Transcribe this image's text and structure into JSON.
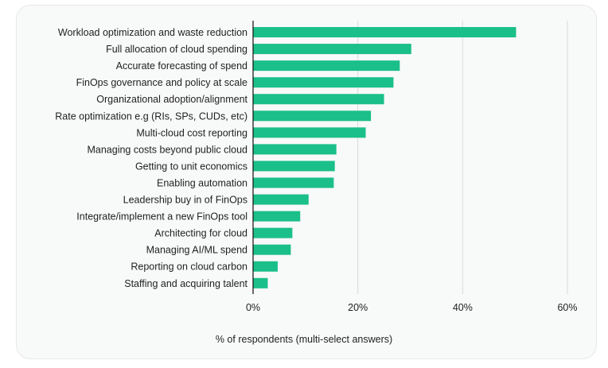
{
  "chart_data": {
    "type": "bar",
    "orientation": "horizontal",
    "categories": [
      "Workload optimization and waste reduction",
      "Full allocation of cloud spending",
      "Accurate forecasting of spend",
      "FinOps governance and policy at scale",
      "Organizational adoption/alignment",
      "Rate optimization e.g (RIs, SPs, CUDs, etc)",
      "Multi-cloud cost reporting",
      "Managing costs beyond public cloud",
      "Getting to unit economics",
      "Enabling automation",
      "Leadership buy in of FinOps",
      "Integrate/implement a new FinOps tool",
      "Architecting for cloud",
      "Managing AI/ML spend",
      "Reporting on cloud carbon",
      "Staffing and acquiring talent"
    ],
    "values": [
      50.2,
      30.2,
      28.0,
      26.8,
      25.0,
      22.5,
      21.5,
      15.9,
      15.6,
      15.4,
      10.6,
      9.0,
      7.5,
      7.2,
      4.7,
      2.8
    ],
    "xlabel": "% of respondents (multi-select answers)",
    "ylabel": "",
    "xlim": [
      0,
      60
    ],
    "xticks": [
      "0%",
      "20%",
      "40%",
      "60%"
    ],
    "xtick_values": [
      0,
      20,
      40,
      60
    ],
    "grid": "vertical",
    "legend": "none",
    "colors": {
      "bar": "#1bbf8a",
      "grid": "#d9d9d9",
      "axis": "#1f1f1f",
      "background": "#f8f9f9"
    }
  }
}
